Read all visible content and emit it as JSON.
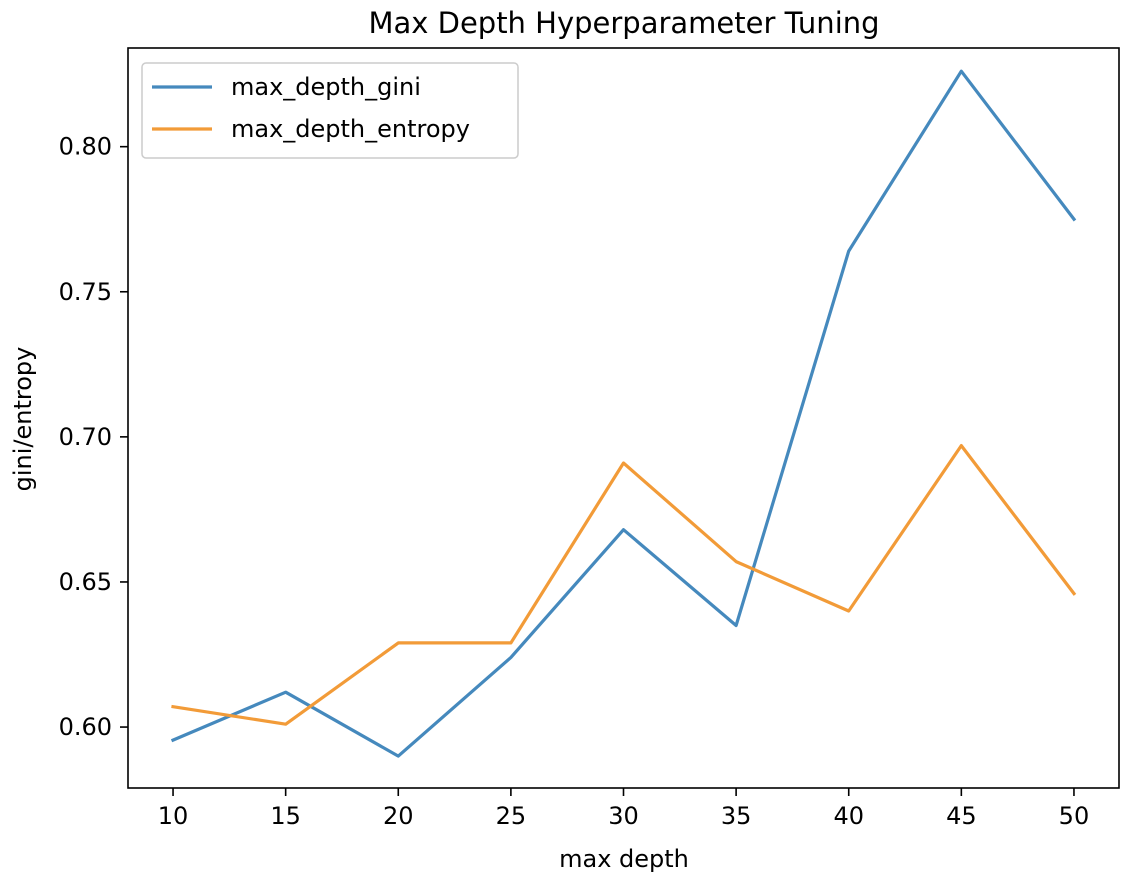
{
  "chart_data": {
    "type": "line",
    "title": "Max Depth Hyperparameter Tuning",
    "xlabel": "max depth",
    "ylabel": "gini/entropy",
    "x": [
      10,
      15,
      20,
      25,
      30,
      35,
      40,
      45,
      50
    ],
    "xlim": [
      8,
      52
    ],
    "ylim": [
      0.579,
      0.834
    ],
    "xticks": [
      10,
      15,
      20,
      25,
      30,
      35,
      40,
      45,
      50
    ],
    "yticks": [
      0.6,
      0.65,
      0.7,
      0.75,
      0.8
    ],
    "xtick_labels": [
      "10",
      "15",
      "20",
      "25",
      "30",
      "35",
      "40",
      "45",
      "50"
    ],
    "ytick_labels": [
      "0.60",
      "0.65",
      "0.70",
      "0.75",
      "0.80"
    ],
    "grid": false,
    "legend_position": "top-left",
    "series": [
      {
        "name": "max_depth_gini",
        "color": "#4589bd",
        "values": [
          0.5955,
          0.612,
          0.59,
          0.624,
          0.668,
          0.635,
          0.764,
          0.826,
          0.775
        ]
      },
      {
        "name": "max_depth_entropy",
        "color": "#f29b38",
        "values": [
          0.607,
          0.601,
          0.629,
          0.629,
          0.691,
          0.657,
          0.64,
          0.697,
          0.646
        ]
      }
    ]
  }
}
